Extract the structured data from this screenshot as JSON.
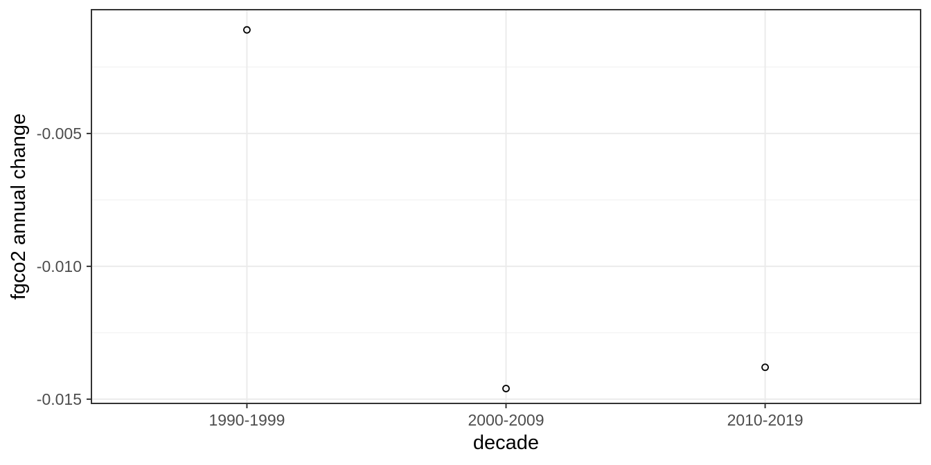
{
  "chart_data": {
    "type": "scatter",
    "title": "",
    "xlabel": "decade",
    "ylabel": "fgco2 annual change",
    "categories": [
      "1990-1999",
      "2000-2009",
      "2010-2019"
    ],
    "values": [
      -0.0011,
      -0.0146,
      -0.0138
    ],
    "y_ticks": [
      -0.005,
      -0.01,
      -0.015
    ],
    "y_tick_labels": [
      "-0.005",
      "-0.010",
      "-0.015"
    ],
    "y_minor_ticks": [
      -0.0025,
      -0.0075,
      -0.0125
    ],
    "ylim": [
      -0.01516,
      -0.00034
    ],
    "grid": "horizontal major+minor, vertical major at each category",
    "legend": "none",
    "marker": "open-circle"
  },
  "style": {
    "background": "#ffffff",
    "panel_background": "#ffffff",
    "panel_border_color": "#333333",
    "grid_major_color": "#ebebeb",
    "grid_minor_color": "#efefef",
    "tick_color": "#333333",
    "tick_label_color": "#4d4d4d",
    "axis_title_color": "#000000",
    "point_color": "#000000"
  }
}
